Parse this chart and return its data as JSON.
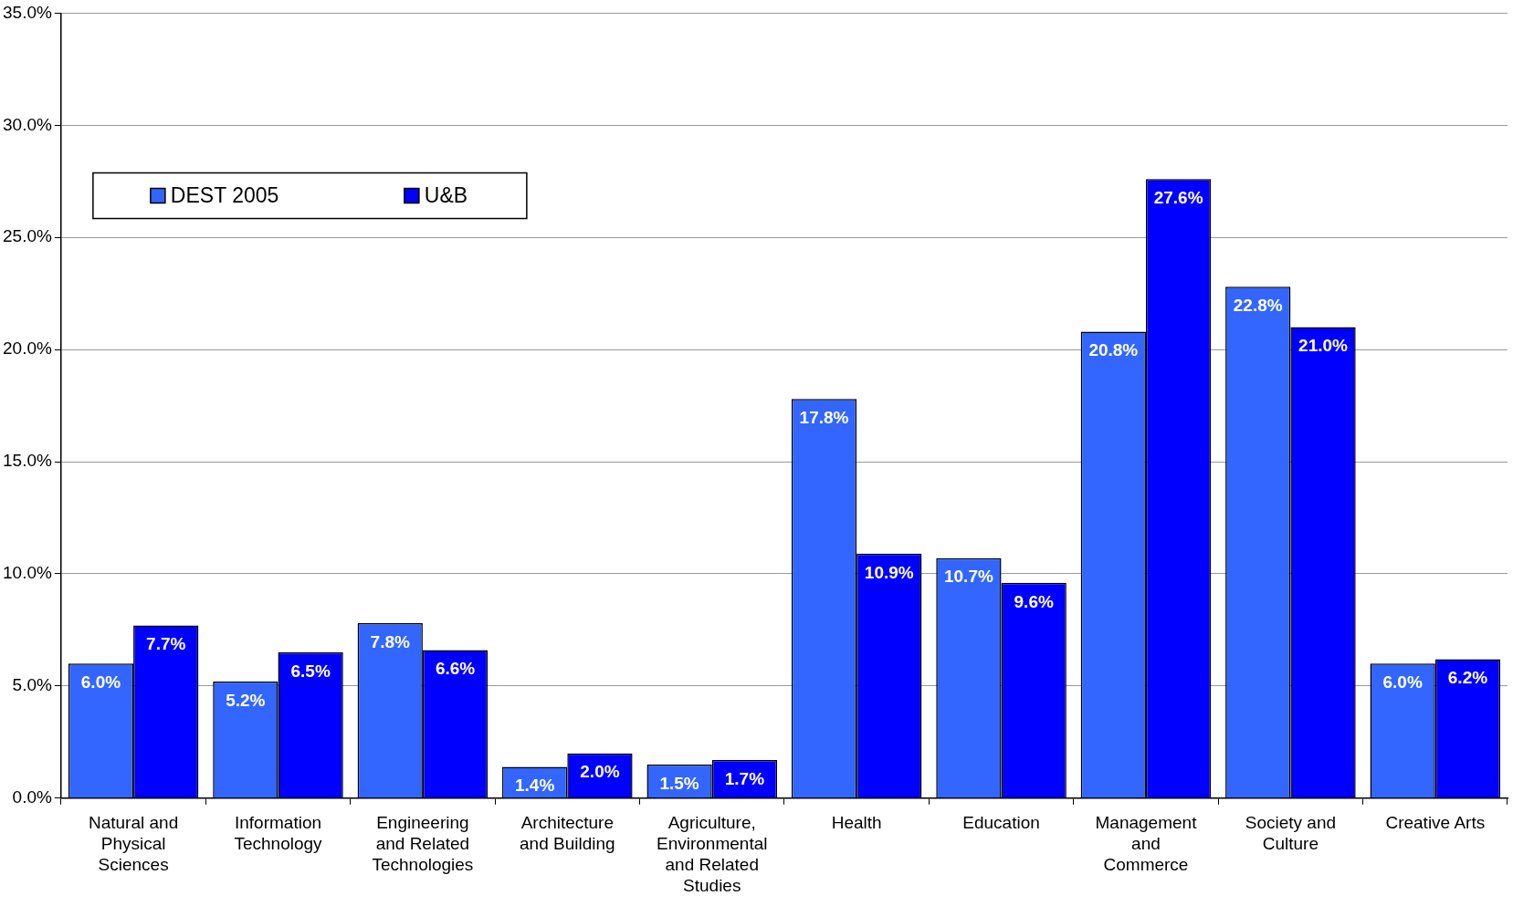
{
  "chart_data": {
    "type": "bar",
    "categories": [
      "Natural and Physical Sciences",
      "Information Technology",
      "Engineering and Related Technologies",
      "Architecture and Building",
      "Agriculture, Environmental and Related Studies",
      "Health",
      "Education",
      "Management and Commerce",
      "Society and Culture",
      "Creative Arts"
    ],
    "series": [
      {
        "name": "DEST 2005",
        "color": "#3366ff",
        "values": [
          6.0,
          5.2,
          7.8,
          1.4,
          1.5,
          17.8,
          10.7,
          20.8,
          22.8,
          6.0
        ],
        "value_labels": [
          "6.0%",
          "5.2%",
          "7.8%",
          "1.4%",
          "1.5%",
          "17.8%",
          "10.7%",
          "20.8%",
          "22.8%",
          "6.0%"
        ]
      },
      {
        "name": "U&B",
        "color": "#0000ff",
        "values": [
          7.7,
          6.5,
          6.6,
          2.0,
          1.7,
          10.9,
          9.6,
          27.6,
          21.0,
          6.2
        ],
        "value_labels": [
          "7.7%",
          "6.5%",
          "6.6%",
          "2.0%",
          "1.7%",
          "10.9%",
          "9.6%",
          "27.6%",
          "21.0%",
          "6.2%"
        ]
      }
    ],
    "ylim": [
      0,
      35
    ],
    "yticks": [
      {
        "value": 0,
        "label": "0.0%"
      },
      {
        "value": 5,
        "label": "5.0%"
      },
      {
        "value": 10,
        "label": "10.0%"
      },
      {
        "value": 15,
        "label": "15.0%"
      },
      {
        "value": 20,
        "label": "20.0%"
      },
      {
        "value": 25,
        "label": "25.0%"
      },
      {
        "value": 30,
        "label": "30.0%"
      },
      {
        "value": 35,
        "label": "35.0%"
      }
    ],
    "grid": "y",
    "legend": "top left"
  }
}
